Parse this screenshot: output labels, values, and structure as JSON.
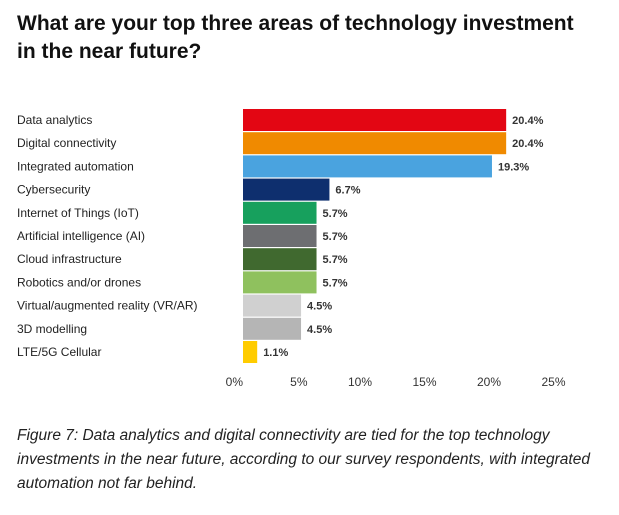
{
  "page": {
    "title": "What are your top three areas of technology investment in the near future?",
    "caption": "Figure 7: Data analytics and digital connectivity are tied for the top technology investments in the near future, according to our survey respondents, with integrated automation not far behind."
  },
  "chart_data": {
    "type": "bar",
    "orientation": "horizontal",
    "title": "What are your top three areas of technology investment in the near future?",
    "xlabel": "",
    "ylabel": "",
    "xlim": [
      0,
      25
    ],
    "grid": false,
    "legend": "none",
    "ticks": [
      {
        "value": 0,
        "label": "0%"
      },
      {
        "value": 5,
        "label": "5%"
      },
      {
        "value": 10,
        "label": "10%"
      },
      {
        "value": 15,
        "label": "15%"
      },
      {
        "value": 20,
        "label": "20%"
      },
      {
        "value": 25,
        "label": "25%"
      }
    ],
    "categories": [
      "Data analytics",
      "Digital connectivity",
      "Integrated automation",
      "Cybersecurity",
      "Internet of Things (IoT)",
      "Artificial intelligence (AI)",
      "Cloud infrastructure",
      "Robotics and/or drones",
      "Virtual/augmented reality (VR/AR)",
      "3D modelling",
      "LTE/5G Cellular"
    ],
    "values": [
      20.4,
      20.4,
      19.3,
      6.7,
      5.7,
      5.7,
      5.7,
      5.7,
      4.5,
      4.5,
      1.1
    ],
    "value_labels": [
      "20.4%",
      "20.4%",
      "19.3%",
      "6.7%",
      "5.7%",
      "5.7%",
      "5.7%",
      "5.7%",
      "4.5%",
      "4.5%",
      "1.1%"
    ],
    "colors": [
      "#e30613",
      "#f08a00",
      "#4aa3df",
      "#0e2f6e",
      "#17a05d",
      "#6d6e71",
      "#40692f",
      "#8fc15e",
      "#d0d0d0",
      "#b5b5b5",
      "#ffcc00"
    ]
  }
}
